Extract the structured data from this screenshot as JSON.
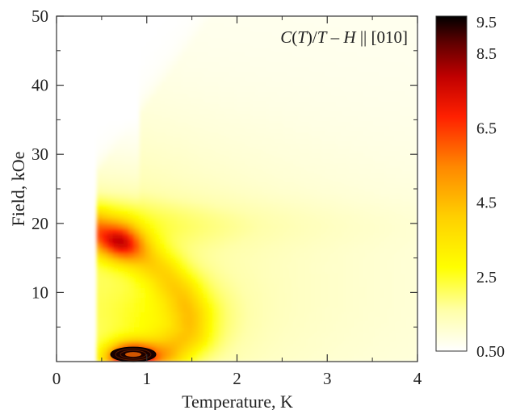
{
  "chart_data": {
    "type": "heatmap",
    "title": "",
    "annotation": "C(T)/T – H || [010]",
    "annotation_parts": {
      "c": "C",
      "t1": "T",
      "slash": "/",
      "t2": "T",
      "dash": " – ",
      "h": "H",
      "rest": " || [010]"
    },
    "xlabel": "Temperature, K",
    "ylabel": "Field, kOe",
    "xlim": [
      0,
      4
    ],
    "ylim": [
      0,
      50
    ],
    "x_ticks": [
      0,
      1,
      2,
      3,
      4
    ],
    "y_ticks": [
      10,
      20,
      30,
      40,
      50
    ],
    "data_x_range": [
      0.45,
      4
    ],
    "data_y_range": [
      0,
      50
    ],
    "colorbar": {
      "range": [
        0.5,
        9.5
      ],
      "tick_labels": [
        "9.5",
        "8.5",
        "6.5",
        "4.5",
        "2.5",
        "0.50"
      ],
      "tick_values": [
        9.5,
        8.5,
        6.5,
        4.5,
        2.5,
        0.5
      ],
      "colors": [
        "#ffffff",
        "#ffffaa",
        "#ffff00",
        "#ffd000",
        "#ff8800",
        "#ff2000",
        "#c00000",
        "#600000",
        "#000000"
      ]
    },
    "features": [
      {
        "name": "level-crossing ridge",
        "points": [
          [
            0.45,
            19
          ],
          [
            0.7,
            18
          ],
          [
            1.0,
            15
          ],
          [
            1.2,
            13
          ],
          [
            1.4,
            10
          ],
          [
            1.5,
            7
          ],
          [
            1.5,
            4
          ],
          [
            1.3,
            1.5
          ]
        ]
      },
      {
        "name": "low-field peak",
        "x": 0.85,
        "y": 0.8,
        "value": 9.5
      }
    ]
  }
}
